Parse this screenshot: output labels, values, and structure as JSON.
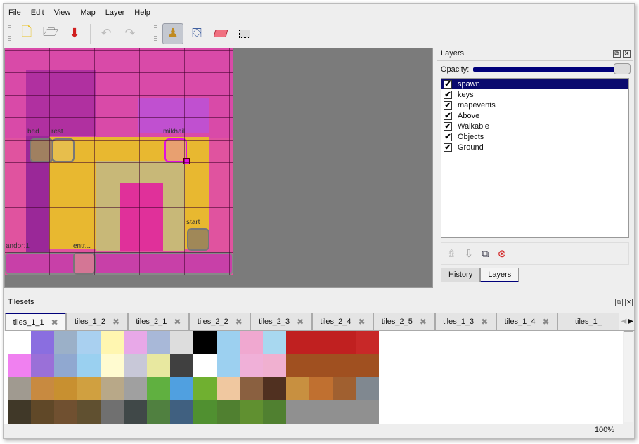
{
  "menu": [
    "File",
    "Edit",
    "View",
    "Map",
    "Layer",
    "Help"
  ],
  "toolbar": {
    "new": "new-file-icon",
    "open": "open-icon",
    "save": "save-icon",
    "undo": "undo-icon",
    "redo": "redo-icon",
    "stamp": "stamp-brush-icon",
    "fill": "bucket-fill-icon",
    "eraser": "eraser-icon",
    "select": "rect-select-icon"
  },
  "map_labels": [
    "bed",
    "rest",
    "mikhail",
    "start",
    "andor:1",
    "entr..."
  ],
  "layers_panel": {
    "title": "Layers",
    "opacity_label": "Opacity:",
    "opacity": 1.0,
    "layers": [
      {
        "name": "spawn",
        "visible": true,
        "selected": true
      },
      {
        "name": "keys",
        "visible": true
      },
      {
        "name": "mapevents",
        "visible": true
      },
      {
        "name": "Above",
        "visible": true
      },
      {
        "name": "Walkable",
        "visible": true
      },
      {
        "name": "Objects",
        "visible": true
      },
      {
        "name": "Ground",
        "visible": true
      }
    ],
    "bottom_tabs": [
      "History",
      "Layers"
    ],
    "active_tab": "Layers"
  },
  "tilesets": {
    "title": "Tilesets",
    "tabs": [
      "tiles_1_1",
      "tiles_1_2",
      "tiles_2_1",
      "tiles_2_2",
      "tiles_2_3",
      "tiles_2_4",
      "tiles_2_5",
      "tiles_1_3",
      "tiles_1_4",
      "tiles_1_"
    ],
    "active": "tiles_1_1",
    "tile_colors": [
      [
        "#ffffff",
        "#8a6ee0",
        "#9bb0c8",
        "#a9d0f0",
        "#fff6b0",
        "#e8a8e8",
        "#a8b8d8",
        "#dddddd",
        "#000000",
        "#9cd0f0",
        "#f0a8d0",
        "#a8d8f0",
        "#c02020",
        "#c02020",
        "#c02020",
        "#c82828"
      ],
      [
        "#f080f0",
        "#9a70d8",
        "#90a8d0",
        "#9ad0f0",
        "#fffbd0",
        "#c8c8d8",
        "#e8e8a0",
        "#404040",
        "#ffffff",
        "#9cd0f0",
        "#f0b0d8",
        "#f0b0d0",
        "#a05020",
        "#a05020",
        "#a05020",
        "#a05020"
      ],
      [
        "#a09a90",
        "#c88a40",
        "#c89030",
        "#d0a040",
        "#b8a888",
        "#a0a0a0",
        "#60b040",
        "#50a0e0",
        "#70b030",
        "#f0c8a0",
        "#8a6040",
        "#503020",
        "#c89040",
        "#c07030",
        "#a06030",
        "#808890"
      ],
      [
        "#403828",
        "#604828",
        "#705030",
        "#605030",
        "#707070",
        "#404848",
        "#508040",
        "#406080",
        "#509030",
        "#508030",
        "#609030",
        "#508030",
        "#909090",
        "#909090",
        "#909090",
        "#909090"
      ]
    ]
  },
  "status": {
    "zoom": "100%"
  }
}
